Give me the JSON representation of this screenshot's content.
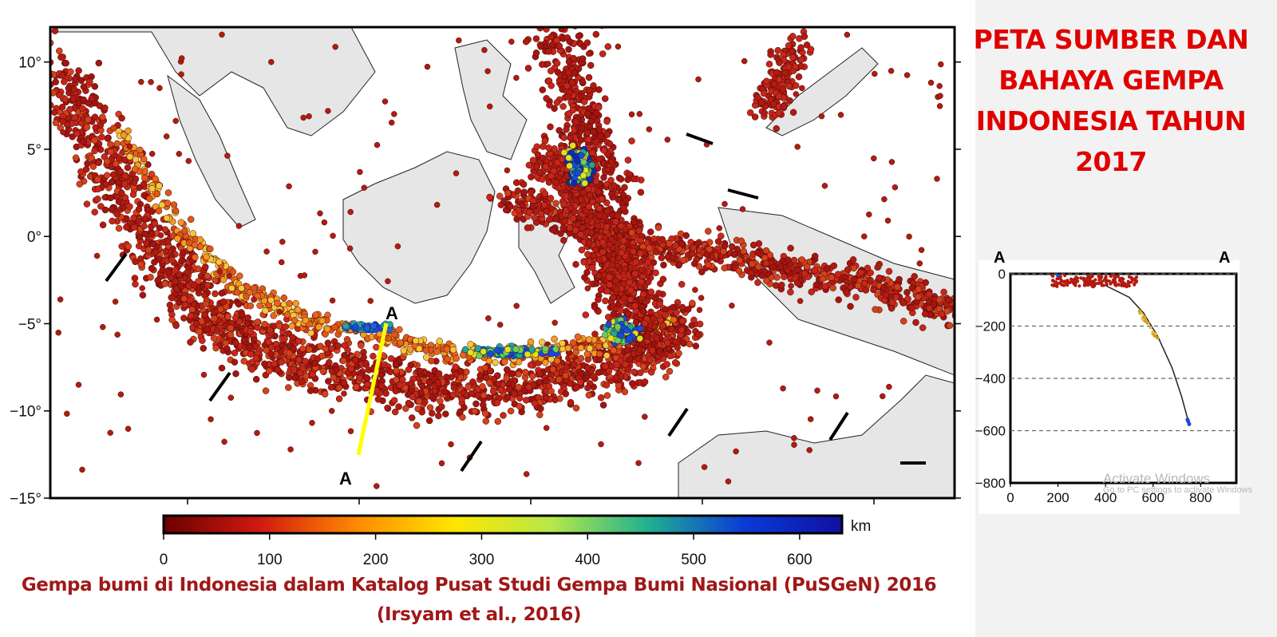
{
  "title": {
    "lines": [
      "PETA SUMBER DAN",
      "BAHAYA GEMPA",
      "INDONESIA TAHUN",
      "2017"
    ]
  },
  "map": {
    "lat_ticks": [
      "10°",
      "5°",
      "0°",
      "−5°",
      "−10°",
      "−15°"
    ],
    "lat_values": [
      10,
      5,
      0,
      -5,
      -10,
      -15
    ],
    "lat_range": [
      -15,
      12
    ],
    "section_line": {
      "label_start": "A",
      "label_end": "A",
      "color": "#ffff00"
    },
    "colors": {
      "shallow": "#b31a10",
      "land": "#e6e6e6"
    }
  },
  "colorbar": {
    "ticks": [
      "0",
      "100",
      "200",
      "300",
      "400",
      "500",
      "600"
    ],
    "unit": "km",
    "range": [
      0,
      640
    ],
    "stops": [
      "#6a0000",
      "#d11a10",
      "#ff8a00",
      "#ffe600",
      "#b6e84a",
      "#20b090",
      "#0a3ad8",
      "#1010a0"
    ]
  },
  "cross_section": {
    "label_left": "A",
    "label_right": "A",
    "y_ticks": [
      "0",
      "−200",
      "−400",
      "−600",
      "−800"
    ],
    "y_values": [
      0,
      -200,
      -400,
      -600,
      -800
    ],
    "x_ticks": [
      "0",
      "200",
      "400",
      "600",
      "800"
    ],
    "x_values": [
      0,
      200,
      400,
      600,
      800
    ],
    "x_range": [
      0,
      950
    ],
    "y_range": [
      -800,
      0
    ],
    "slab_curve": [
      [
        300,
        -20
      ],
      [
        400,
        -45
      ],
      [
        500,
        -90
      ],
      [
        560,
        -150
      ],
      [
        620,
        -240
      ],
      [
        680,
        -360
      ],
      [
        720,
        -470
      ],
      [
        750,
        -570
      ]
    ]
  },
  "caption": {
    "line1": "Gempa bumi di Indonesia dalam Katalog Pusat Studi Gempa Bumi Nasional (PuSGeN)  2016",
    "line2": "(Irsyam et al., 2016)"
  },
  "watermark": {
    "line1": "Activate Windows",
    "line2": "Go to PC settings to activate Windows"
  }
}
